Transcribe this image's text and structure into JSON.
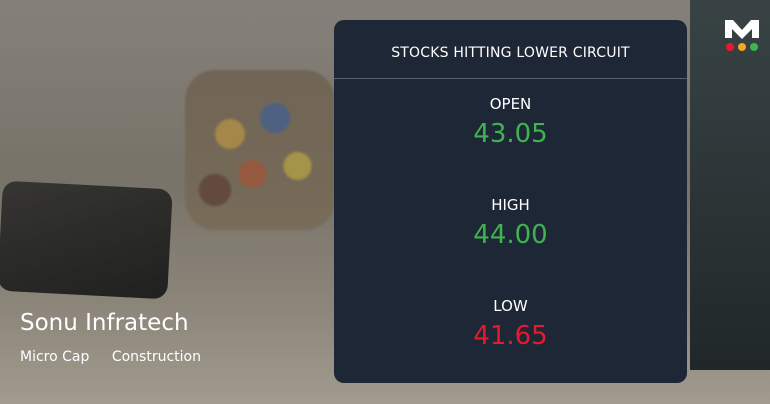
{
  "card": {
    "title": "STOCKS HITTING LOWER CIRCUIT",
    "rows": [
      {
        "label": "OPEN",
        "value": "43.05",
        "color": "#3fb34f"
      },
      {
        "label": "HIGH",
        "value": "44.00",
        "color": "#3fb34f"
      },
      {
        "label": "LOW",
        "value": "41.65",
        "color": "#e8192c"
      }
    ]
  },
  "company": {
    "name": "Sonu Infratech",
    "tags": [
      "Micro Cap",
      "Construction"
    ]
  },
  "logo": {
    "letter": "M",
    "dots": [
      "#e8192c",
      "#f5a623",
      "#3fb34f"
    ]
  }
}
